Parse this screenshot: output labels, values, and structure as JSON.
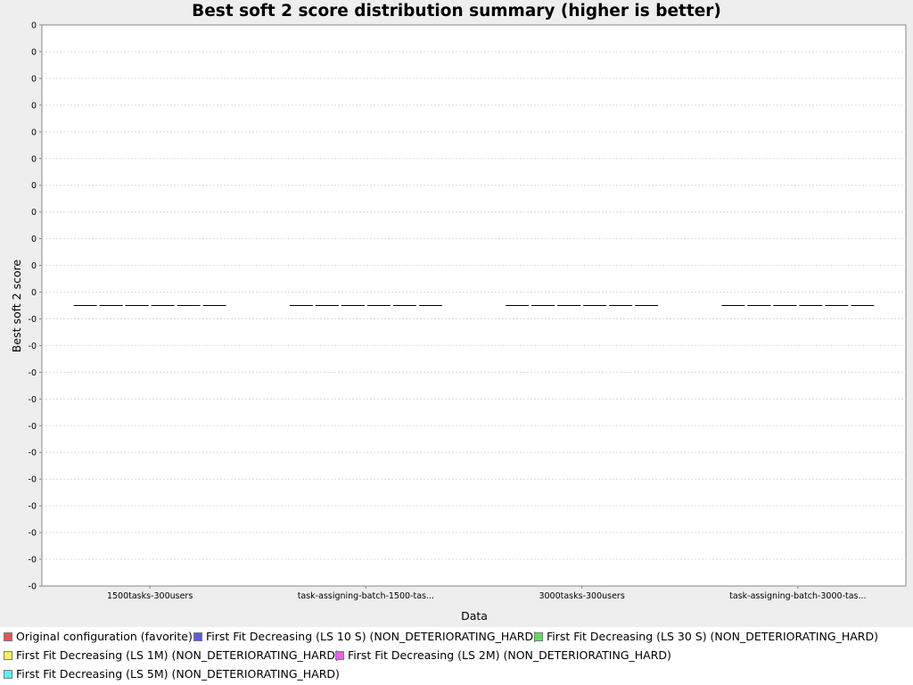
{
  "chart_data": {
    "type": "box",
    "title": "Best soft 2 score distribution summary (higher is better)",
    "xlabel": "Data",
    "ylabel": "Best soft 2 score",
    "categories": [
      "1500tasks-300users",
      "task-assigning-batch-1500-tas...",
      "3000tasks-300users",
      "task-assigning-batch-3000-tas..."
    ],
    "y_tick_labels": [
      "0",
      "0",
      "0",
      "0",
      "0",
      "0",
      "0",
      "0",
      "0",
      "0",
      "0",
      "-0",
      "-0",
      "-0",
      "-0",
      "-0",
      "-0",
      "-0",
      "-0",
      "-0",
      "-0",
      "-0"
    ],
    "grid": true,
    "legend_position": "bottom",
    "series": [
      {
        "name": "Original configuration (favorite)",
        "color": "#e05757",
        "values": [
          0,
          0,
          0,
          0
        ]
      },
      {
        "name": "First Fit Decreasing (LS 10 S) (NON_DETERIORATING_HARD)",
        "color": "#5a5ae8",
        "values": [
          0,
          0,
          0,
          0
        ]
      },
      {
        "name": "First Fit Decreasing (LS 30 S) (NON_DETERIORATING_HARD)",
        "color": "#5ae05a",
        "values": [
          0,
          0,
          0,
          0
        ]
      },
      {
        "name": "First Fit Decreasing (LS 1M) (NON_DETERIORATING_HARD)",
        "color": "#f2f25a",
        "values": [
          0,
          0,
          0,
          0
        ]
      },
      {
        "name": "First Fit Decreasing (LS 2M) (NON_DETERIORATING_HARD)",
        "color": "#f25af2",
        "values": [
          0,
          0,
          0,
          0
        ]
      },
      {
        "name": "First Fit Decreasing (LS 5M) (NON_DETERIORATING_HARD)",
        "color": "#5af2f2",
        "values": [
          0,
          0,
          0,
          0
        ]
      }
    ]
  }
}
